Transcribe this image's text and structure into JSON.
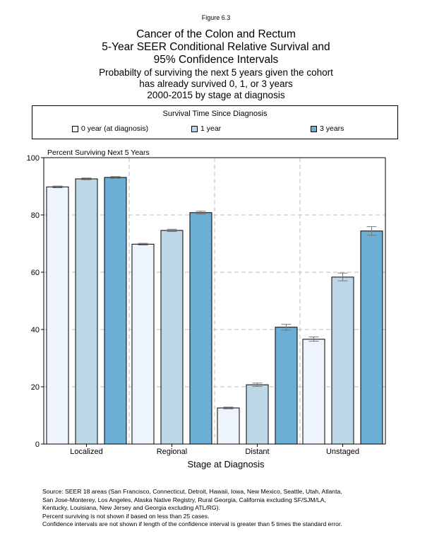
{
  "figure_label": "Figure 6.3",
  "title_lines": [
    "Cancer of the Colon and Rectum",
    "5-Year SEER Conditional Relative Survival and",
    "95% Confidence Intervals"
  ],
  "subtitle_lines": [
    "Probabilty of surviving the next 5 years given the cohort",
    "has already survived 0, 1, or 3 years",
    "2000-2015 by stage at diagnosis"
  ],
  "legend": {
    "title": "Survival Time Since Diagnosis",
    "items": [
      {
        "label": "0 year (at diagnosis)",
        "color": "#eef4fc"
      },
      {
        "label": "1 year",
        "color": "#bdd7e7"
      },
      {
        "label": "3 years",
        "color": "#6baed6"
      }
    ]
  },
  "chart_data": {
    "type": "bar",
    "title": "Cancer of the Colon and Rectum",
    "ylabel": "Percent Surviving Next 5 Years",
    "xlabel": "Stage at Diagnosis",
    "ylim": [
      0,
      100
    ],
    "yticks": [
      0,
      20,
      40,
      60,
      80,
      100
    ],
    "grid": true,
    "legend_position": "top",
    "categories": [
      "Localized",
      "Regional",
      "Distant",
      "Unstaged"
    ],
    "series": [
      {
        "name": "0 year (at diagnosis)",
        "color": "#eef4fc",
        "values": [
          89.8,
          69.8,
          12.6,
          36.6
        ],
        "ci": [
          [
            89.5,
            90.1
          ],
          [
            69.5,
            70.1
          ],
          [
            12.3,
            12.9
          ],
          [
            35.9,
            37.4
          ]
        ]
      },
      {
        "name": "1 year",
        "color": "#bdd7e7",
        "values": [
          92.6,
          74.6,
          20.7,
          58.3
        ],
        "ci": [
          [
            92.3,
            92.9
          ],
          [
            74.2,
            75.0
          ],
          [
            20.1,
            21.3
          ],
          [
            57.0,
            59.7
          ]
        ]
      },
      {
        "name": "3 years",
        "color": "#6baed6",
        "values": [
          93.1,
          80.8,
          40.8,
          74.4
        ],
        "ci": [
          [
            92.8,
            93.4
          ],
          [
            80.3,
            81.3
          ],
          [
            39.8,
            41.8
          ],
          [
            72.9,
            75.9
          ]
        ]
      }
    ]
  },
  "source_lines": [
    "Source:  SEER 18 areas (San Francisco, Connecticut, Detroit, Hawaii, Iowa, New Mexico, Seattle, Utah, Atlanta,",
    "San Jose-Monterey, Los Angeles, Alaska Native Registry, Rural Georgia, California excluding SF/SJM/LA,",
    "Kentucky, Louisiana, New Jersey and Georgia excluding ATL/RG).",
    "Percent surviving is not shown if based on less than 25 cases.",
    "Confidence intervals are not shown if length of the confidence interval is greater than 5 times the standard error."
  ]
}
